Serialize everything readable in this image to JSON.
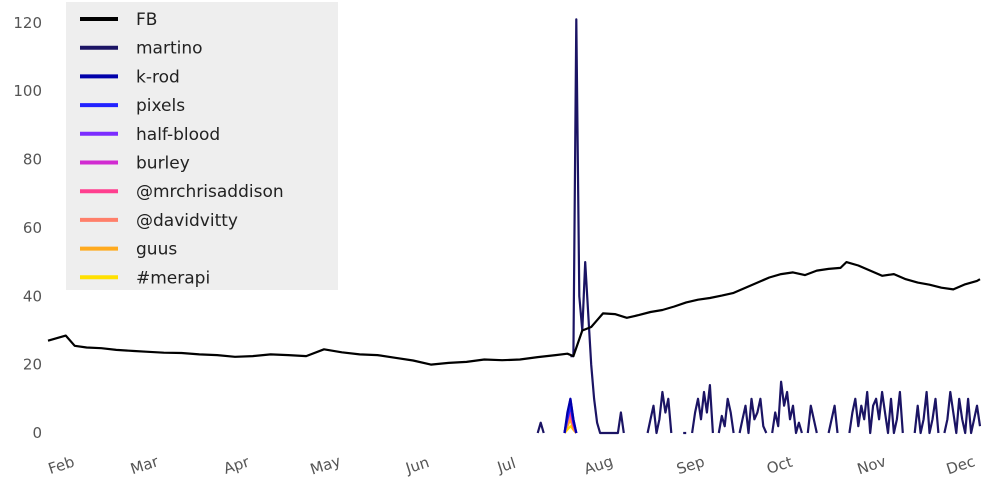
{
  "chart_data": {
    "type": "line",
    "title": "",
    "xlabel": "",
    "ylabel": "",
    "ylim": [
      0,
      122
    ],
    "yticks": [
      0,
      20,
      40,
      60,
      80,
      100,
      120
    ],
    "xlim": [
      27,
      341
    ],
    "xticks": [
      {
        "label": "Feb",
        "x": 32
      },
      {
        "label": "Mar",
        "x": 60
      },
      {
        "label": "Apr",
        "x": 91
      },
      {
        "label": "May",
        "x": 121
      },
      {
        "label": "Jun",
        "x": 152
      },
      {
        "label": "Jul",
        "x": 182
      },
      {
        "label": "Aug",
        "x": 213
      },
      {
        "label": "Sep",
        "x": 244
      },
      {
        "label": "Oct",
        "x": 274
      },
      {
        "label": "Nov",
        "x": 305
      },
      {
        "label": "Dec",
        "x": 335
      }
    ],
    "grid": false,
    "legend_position": "top-left",
    "legend_background": "#eeeeee",
    "series": [
      {
        "name": "FB",
        "color": "#000000",
        "width": 2.2,
        "points": [
          [
            27,
            27
          ],
          [
            33,
            28.5
          ],
          [
            36,
            25.5
          ],
          [
            40,
            25
          ],
          [
            45,
            24.8
          ],
          [
            50,
            24.3
          ],
          [
            56,
            24
          ],
          [
            60,
            23.8
          ],
          [
            66,
            23.5
          ],
          [
            72,
            23.4
          ],
          [
            78,
            23
          ],
          [
            84,
            22.8
          ],
          [
            90,
            22.3
          ],
          [
            96,
            22.5
          ],
          [
            102,
            23
          ],
          [
            108,
            22.8
          ],
          [
            114,
            22.5
          ],
          [
            120,
            24.5
          ],
          [
            126,
            23.6
          ],
          [
            132,
            23
          ],
          [
            138,
            22.8
          ],
          [
            144,
            22
          ],
          [
            150,
            21.2
          ],
          [
            156,
            20
          ],
          [
            162,
            20.5
          ],
          [
            168,
            20.8
          ],
          [
            174,
            21.5
          ],
          [
            180,
            21.3
          ],
          [
            186,
            21.5
          ],
          [
            192,
            22.2
          ],
          [
            198,
            22.8
          ],
          [
            202,
            23.2
          ],
          [
            204,
            22.5
          ],
          [
            207,
            30
          ],
          [
            210,
            31
          ],
          [
            212,
            33
          ],
          [
            214,
            35
          ],
          [
            218,
            34.8
          ],
          [
            222,
            33.7
          ],
          [
            226,
            34.5
          ],
          [
            230,
            35.4
          ],
          [
            234,
            36
          ],
          [
            238,
            37
          ],
          [
            242,
            38.2
          ],
          [
            246,
            39
          ],
          [
            250,
            39.5
          ],
          [
            254,
            40.2
          ],
          [
            258,
            41
          ],
          [
            262,
            42.5
          ],
          [
            266,
            44
          ],
          [
            270,
            45.5
          ],
          [
            274,
            46.5
          ],
          [
            278,
            47
          ],
          [
            282,
            46.2
          ],
          [
            286,
            47.5
          ],
          [
            290,
            48
          ],
          [
            294,
            48.3
          ],
          [
            296,
            50
          ],
          [
            300,
            49
          ],
          [
            304,
            47.5
          ],
          [
            308,
            46
          ],
          [
            312,
            46.5
          ],
          [
            316,
            45
          ],
          [
            320,
            44
          ],
          [
            324,
            43.4
          ],
          [
            328,
            42.5
          ],
          [
            332,
            42
          ],
          [
            336,
            43.5
          ],
          [
            340,
            44.5
          ],
          [
            341,
            45
          ]
        ]
      },
      {
        "name": "martino",
        "color": "#1b1464",
        "width": 2.2,
        "points": [
          [
            203,
            22.5
          ],
          [
            204,
            22.5
          ],
          [
            205,
            121
          ],
          [
            206,
            40
          ],
          [
            207,
            30
          ],
          [
            208,
            50
          ],
          [
            209,
            35
          ],
          [
            210,
            20
          ],
          [
            211,
            10
          ],
          [
            212,
            3
          ],
          [
            213,
            0
          ],
          [
            214,
            0
          ],
          [
            215,
            0
          ],
          [
            216,
            0
          ],
          [
            217,
            0
          ],
          [
            218,
            0
          ],
          [
            219,
            0
          ],
          [
            220,
            6
          ],
          [
            221,
            0
          ]
        ],
        "segments": [
          [
            [
              192,
              0
            ],
            [
              193,
              3
            ],
            [
              194,
              0
            ]
          ],
          [
            [
              229,
              0
            ],
            [
              230,
              4
            ],
            [
              231,
              8
            ],
            [
              232,
              0
            ],
            [
              233,
              4
            ],
            [
              234,
              12
            ],
            [
              235,
              6
            ],
            [
              236,
              10
            ],
            [
              237,
              0
            ]
          ],
          [
            [
              241,
              0
            ],
            [
              242,
              0
            ]
          ],
          [
            [
              244,
              0
            ],
            [
              245,
              6
            ],
            [
              246,
              10
            ],
            [
              247,
              4
            ],
            [
              248,
              12
            ],
            [
              249,
              6
            ],
            [
              250,
              14
            ],
            [
              251,
              0
            ]
          ],
          [
            [
              253,
              0
            ],
            [
              254,
              5
            ],
            [
              255,
              2
            ],
            [
              256,
              10
            ],
            [
              257,
              6
            ],
            [
              258,
              0
            ]
          ],
          [
            [
              260,
              0
            ],
            [
              261,
              4
            ],
            [
              262,
              8
            ],
            [
              263,
              0
            ],
            [
              264,
              10
            ],
            [
              265,
              4
            ],
            [
              266,
              6
            ],
            [
              267,
              10
            ],
            [
              268,
              2
            ],
            [
              269,
              0
            ]
          ],
          [
            [
              271,
              0
            ],
            [
              272,
              6
            ],
            [
              273,
              2
            ],
            [
              274,
              15
            ],
            [
              275,
              8
            ],
            [
              276,
              12
            ],
            [
              277,
              4
            ],
            [
              278,
              8
            ],
            [
              279,
              0
            ],
            [
              280,
              3
            ],
            [
              281,
              0
            ]
          ],
          [
            [
              283,
              0
            ],
            [
              284,
              8
            ],
            [
              285,
              4
            ],
            [
              286,
              0
            ]
          ],
          [
            [
              290,
              0
            ],
            [
              291,
              4
            ],
            [
              292,
              8
            ],
            [
              293,
              0
            ]
          ],
          [
            [
              297,
              0
            ],
            [
              298,
              6
            ],
            [
              299,
              10
            ],
            [
              300,
              2
            ],
            [
              301,
              8
            ],
            [
              302,
              4
            ],
            [
              303,
              12
            ],
            [
              304,
              0
            ],
            [
              305,
              8
            ],
            [
              306,
              10
            ],
            [
              307,
              4
            ],
            [
              308,
              12
            ],
            [
              309,
              6
            ],
            [
              310,
              0
            ],
            [
              311,
              10
            ],
            [
              312,
              0
            ],
            [
              313,
              4
            ],
            [
              314,
              12
            ],
            [
              315,
              0
            ]
          ],
          [
            [
              319,
              0
            ],
            [
              320,
              8
            ],
            [
              321,
              0
            ],
            [
              322,
              4
            ],
            [
              323,
              12
            ],
            [
              324,
              0
            ],
            [
              325,
              4
            ],
            [
              326,
              10
            ],
            [
              327,
              0
            ]
          ],
          [
            [
              329,
              0
            ],
            [
              330,
              4
            ],
            [
              331,
              12
            ],
            [
              332,
              6
            ],
            [
              333,
              0
            ],
            [
              334,
              10
            ],
            [
              335,
              4
            ],
            [
              336,
              0
            ],
            [
              337,
              10
            ],
            [
              338,
              0
            ],
            [
              339,
              4
            ],
            [
              340,
              8
            ],
            [
              341,
              2
            ]
          ]
        ]
      },
      {
        "name": "k-rod",
        "color": "#0000aa",
        "width": 2.2,
        "points": [
          [
            201,
            0
          ],
          [
            202,
            6
          ],
          [
            203,
            10
          ],
          [
            204,
            4
          ],
          [
            205,
            0
          ]
        ]
      },
      {
        "name": "pixels",
        "color": "#2222ff",
        "width": 2.2,
        "points": [
          [
            201,
            0
          ],
          [
            202,
            4
          ],
          [
            203,
            8
          ],
          [
            204,
            3
          ],
          [
            205,
            0
          ]
        ]
      },
      {
        "name": "half-blood",
        "color": "#7b2cff",
        "width": 2.2,
        "points": [
          [
            201,
            0
          ],
          [
            202,
            5
          ],
          [
            203,
            10
          ],
          [
            204,
            4
          ],
          [
            205,
            0
          ]
        ]
      },
      {
        "name": "burley",
        "color": "#d12bd1",
        "width": 2.2,
        "points": [
          [
            201,
            0
          ],
          [
            202,
            5
          ],
          [
            203,
            8
          ],
          [
            204,
            3
          ],
          [
            205,
            0
          ]
        ]
      },
      {
        "name": "@mrchrisaddison",
        "color": "#ff3f8f",
        "width": 2.2,
        "points": [
          [
            201,
            0
          ],
          [
            202,
            4
          ],
          [
            203,
            6
          ],
          [
            204,
            2
          ],
          [
            205,
            0
          ]
        ]
      },
      {
        "name": "@davidvitty",
        "color": "#ff7f6a",
        "width": 2.2,
        "points": [
          [
            201,
            0
          ],
          [
            202,
            3
          ],
          [
            203,
            5
          ],
          [
            204,
            2
          ],
          [
            205,
            0
          ]
        ]
      },
      {
        "name": "guus",
        "color": "#ffaa1e",
        "width": 2.2,
        "points": [
          [
            201,
            0
          ],
          [
            202,
            2
          ],
          [
            203,
            4
          ],
          [
            204,
            1
          ],
          [
            205,
            0
          ]
        ]
      },
      {
        "name": "#merapi",
        "color": "#ffe000",
        "width": 2.2,
        "points": [
          [
            201,
            0
          ],
          [
            202,
            1
          ],
          [
            203,
            2
          ],
          [
            204,
            1
          ],
          [
            205,
            0
          ]
        ]
      }
    ]
  }
}
